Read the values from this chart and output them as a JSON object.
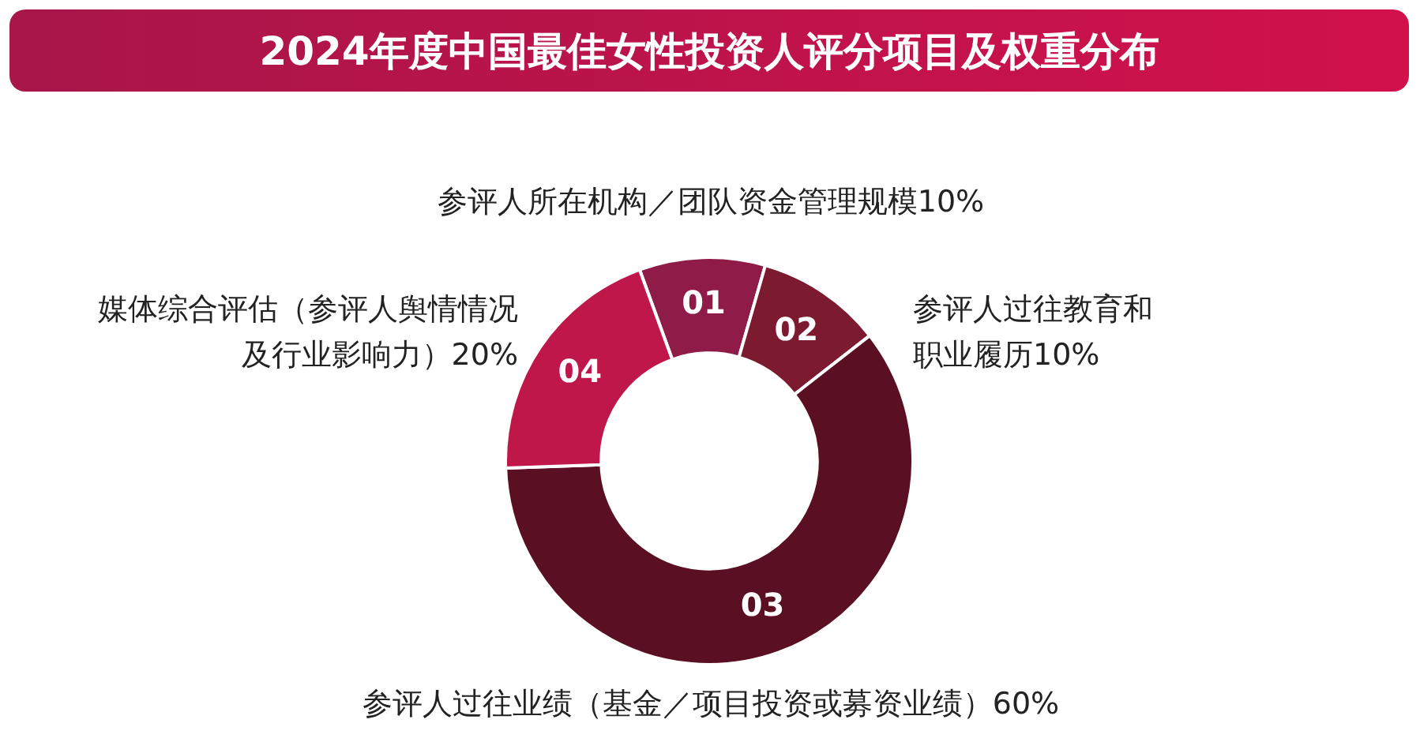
{
  "chart_data": {
    "type": "donut",
    "title": "2024年度中国最佳女性投资人评分项目及权重分布",
    "categories": [
      "参评人所在机构／团队资金管理规模10%",
      "参评人过往教育和职业履历10%",
      "参评人过往业绩（基金／项目投资或募资业绩）60%",
      "媒体综合评估（参评人舆情情况及行业影响力）20%"
    ],
    "values": [
      10,
      10,
      60,
      20
    ],
    "colors": [
      "#8e1b48",
      "#7c1a30",
      "#5b0f22",
      "#c0174b"
    ],
    "annotations": [
      "01",
      "02",
      "03",
      "04"
    ],
    "legend": false
  }
}
